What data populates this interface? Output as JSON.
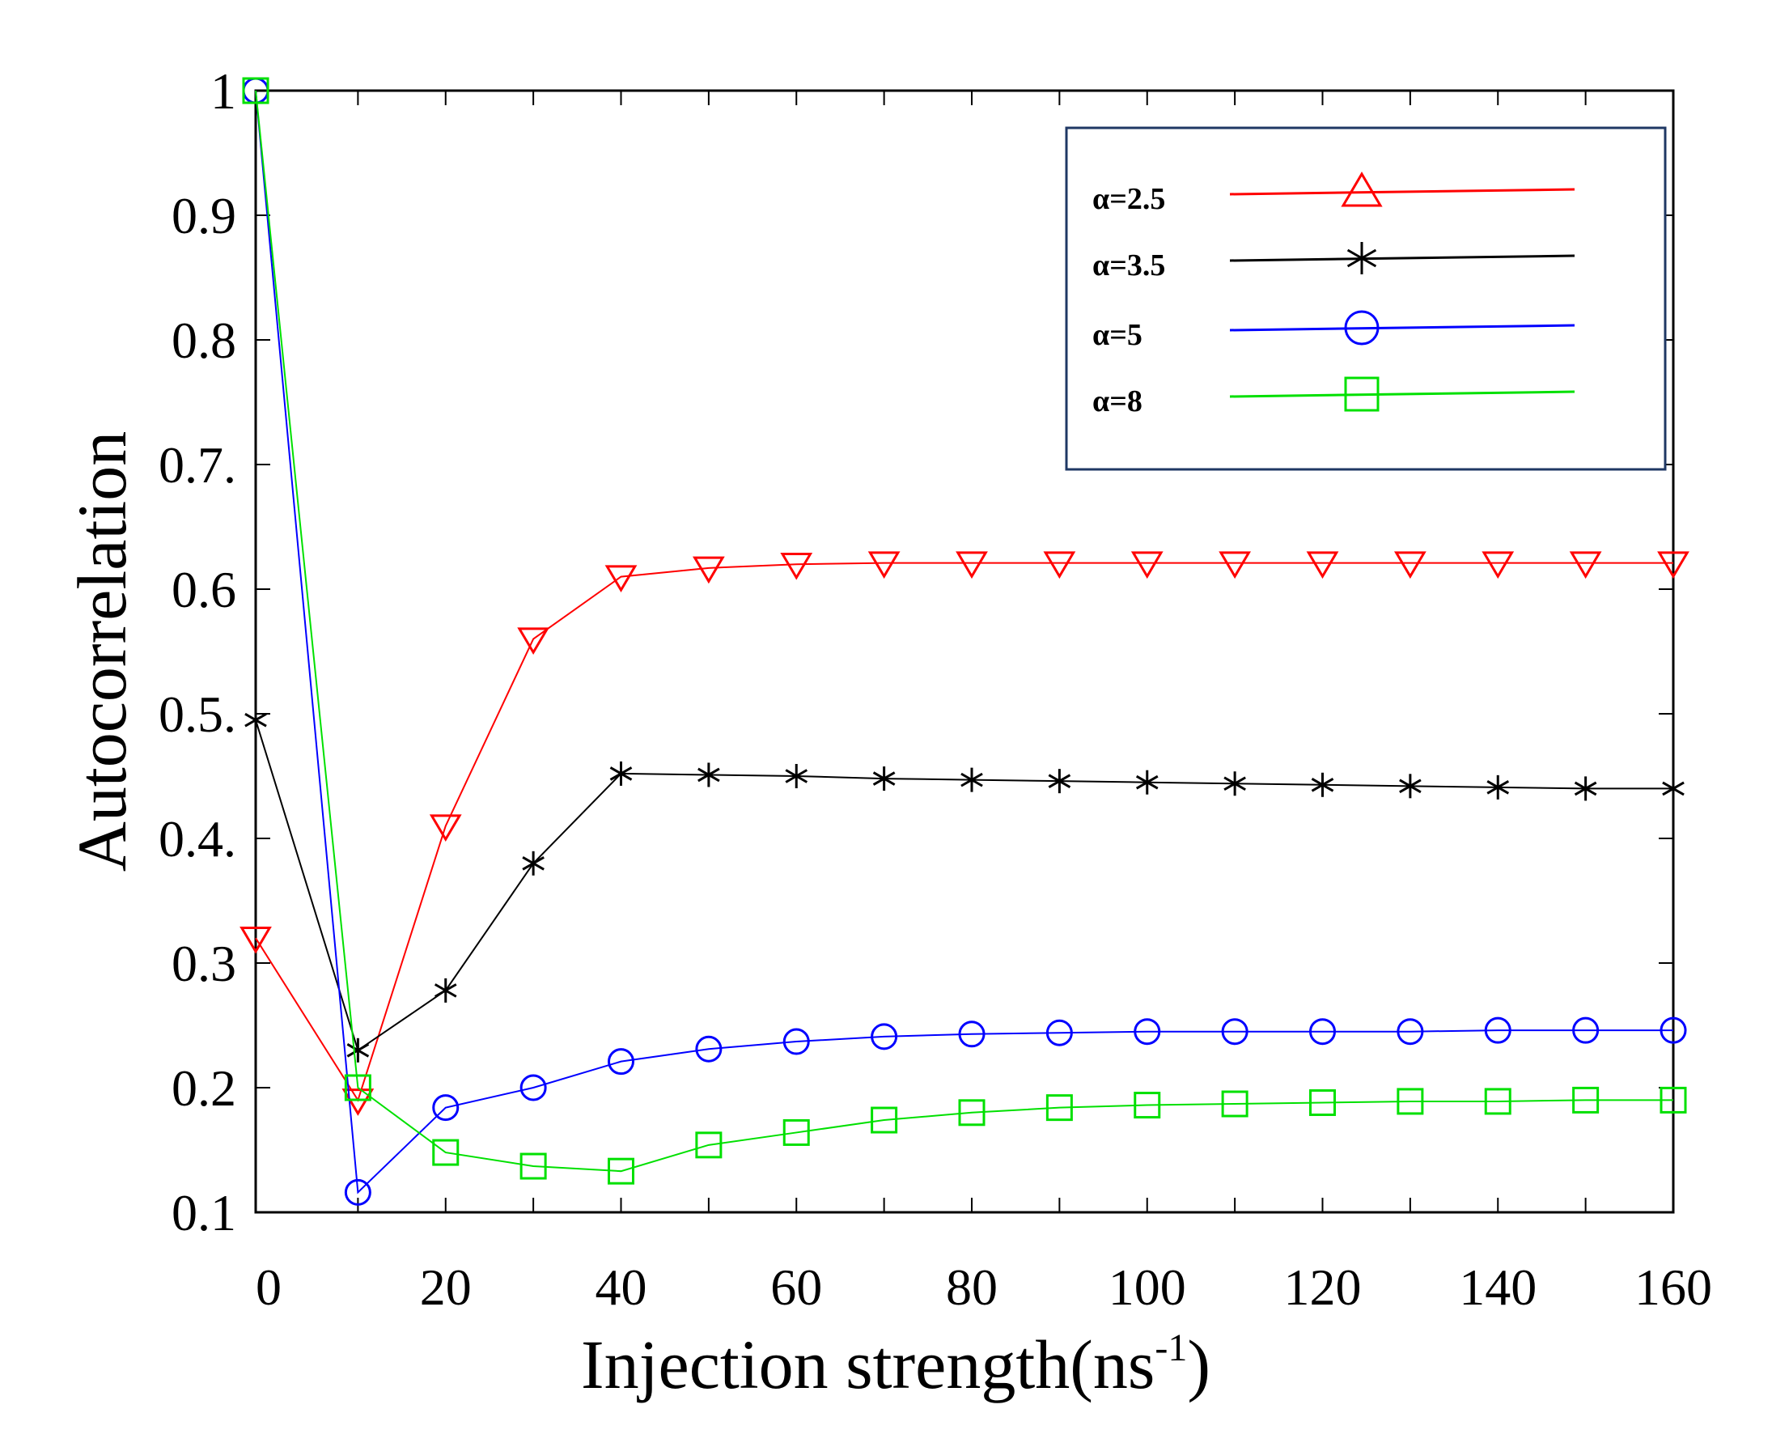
{
  "chart_data": {
    "type": "line",
    "title": "",
    "xlabel": "Injection strength(ns",
    "xlabel_sup": "-1",
    "xlabel_close": ")",
    "ylabel": "Autocorrelation",
    "xlim": [
      0,
      160
    ],
    "ylim": [
      0.1,
      1.0
    ],
    "grid": false,
    "legend_position": "top-right",
    "x": [
      0,
      10,
      20,
      30,
      40,
      50,
      60,
      70,
      80,
      90,
      100,
      110,
      120,
      130,
      140,
      150,
      160
    ],
    "xticks": [
      0,
      20,
      40,
      60,
      80,
      100,
      120,
      140,
      160
    ],
    "xtick_labels": [
      "0",
      "20",
      "40",
      "60",
      "80",
      "100",
      "120",
      "140",
      "160"
    ],
    "yticks": [
      0.1,
      0.2,
      0.3,
      0.4,
      0.5,
      0.6,
      0.7,
      0.8,
      0.9,
      1.0
    ],
    "ytick_labels": [
      "0.1",
      "0.2",
      "0.3",
      "0.4.",
      "0.5.",
      "0.6",
      "0.7.",
      "0.8",
      "0.9",
      "1"
    ],
    "series": [
      {
        "name": "α=2.5",
        "color": "#ff0000",
        "marker": "triangle-down",
        "legend_marker": "triangle-up",
        "values": [
          0.32,
          0.19,
          0.41,
          0.56,
          0.61,
          0.617,
          0.62,
          0.621,
          0.621,
          0.621,
          0.621,
          0.621,
          0.621,
          0.621,
          0.621,
          0.621,
          0.621
        ]
      },
      {
        "name": "α=3.5",
        "color": "#000000",
        "marker": "asterisk",
        "legend_marker": "asterisk",
        "values": [
          0.495,
          0.23,
          0.278,
          0.38,
          0.452,
          0.451,
          0.45,
          0.448,
          0.447,
          0.446,
          0.445,
          0.444,
          0.443,
          0.442,
          0.441,
          0.44,
          0.44
        ]
      },
      {
        "name": "α=5",
        "color": "#0000ff",
        "marker": "circle",
        "legend_marker": "circle",
        "values": [
          1.0,
          0.116,
          0.184,
          0.2,
          0.221,
          0.231,
          0.237,
          0.241,
          0.243,
          0.244,
          0.245,
          0.245,
          0.245,
          0.245,
          0.246,
          0.246,
          0.246
        ]
      },
      {
        "name": "α=8",
        "color": "#00e000",
        "marker": "square",
        "legend_marker": "square",
        "values": [
          1.0,
          0.2,
          0.148,
          0.137,
          0.133,
          0.154,
          0.164,
          0.174,
          0.18,
          0.184,
          0.186,
          0.187,
          0.188,
          0.189,
          0.189,
          0.19,
          0.19
        ]
      }
    ]
  }
}
